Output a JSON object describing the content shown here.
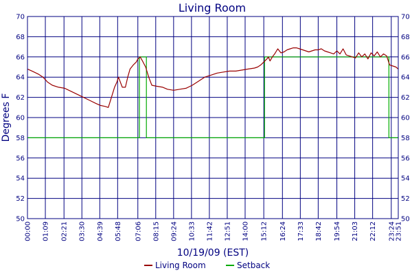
{
  "chart_data": {
    "type": "line",
    "title": "Living Room",
    "xlabel": "10/19/09 (EST)",
    "ylabel": "Degrees F",
    "ylim": [
      50,
      70
    ],
    "yticks": [
      50,
      52,
      54,
      56,
      58,
      60,
      62,
      64,
      66,
      68,
      70
    ],
    "x_unit": "hours",
    "xlim": [
      0,
      23.85
    ],
    "xtick_labels": [
      "00:00",
      "01:09",
      "02:21",
      "03:30",
      "04:39",
      "05:48",
      "07:06",
      "08:15",
      "09:24",
      "10:33",
      "11:42",
      "12:51",
      "14:00",
      "15:12",
      "16:24",
      "17:33",
      "18:42",
      "19:54",
      "21:03",
      "22:12",
      "23:24",
      "23:51"
    ],
    "xtick_hours": [
      0,
      1.15,
      2.35,
      3.5,
      4.65,
      5.8,
      7.1,
      8.25,
      9.4,
      10.55,
      11.7,
      12.85,
      14.0,
      15.2,
      16.4,
      17.55,
      18.7,
      19.9,
      21.05,
      22.2,
      23.4,
      23.85
    ],
    "grid": true,
    "legend_position": "bottom-center",
    "series": [
      {
        "name": "Living Room",
        "color": "#990000",
        "x": [
          0.0,
          0.3,
          0.7,
          1.0,
          1.3,
          1.6,
          2.0,
          2.4,
          2.8,
          3.2,
          3.6,
          4.0,
          4.4,
          4.7,
          5.0,
          5.2,
          5.4,
          5.6,
          5.75,
          5.85,
          6.1,
          6.3,
          6.45,
          6.6,
          6.8,
          7.0,
          7.1,
          7.25,
          7.4,
          7.6,
          7.8,
          8.0,
          8.3,
          8.7,
          9.0,
          9.4,
          9.8,
          10.2,
          10.6,
          11.0,
          11.4,
          11.8,
          12.2,
          12.6,
          13.0,
          13.4,
          13.8,
          14.2,
          14.6,
          14.8,
          15.0,
          15.2,
          15.4,
          15.5,
          15.6,
          15.75,
          15.9,
          16.1,
          16.3,
          16.5,
          16.7,
          16.9,
          17.1,
          17.3,
          17.5,
          17.7,
          17.9,
          18.1,
          18.3,
          18.5,
          18.7,
          18.9,
          19.1,
          19.3,
          19.5,
          19.7,
          19.9,
          20.1,
          20.3,
          20.5,
          20.7,
          20.9,
          21.1,
          21.3,
          21.5,
          21.7,
          21.9,
          22.1,
          22.3,
          22.5,
          22.7,
          22.9,
          23.1,
          23.3,
          23.5,
          23.7,
          23.85
        ],
        "y": [
          64.8,
          64.6,
          64.3,
          64.0,
          63.5,
          63.2,
          63.0,
          62.9,
          62.6,
          62.3,
          62.0,
          61.7,
          61.4,
          61.2,
          61.1,
          61.0,
          62.0,
          63.0,
          63.5,
          64.0,
          63.0,
          63.0,
          64.0,
          64.8,
          65.2,
          65.5,
          65.8,
          66.0,
          65.6,
          65.0,
          64.0,
          63.2,
          63.1,
          63.0,
          62.8,
          62.7,
          62.8,
          62.9,
          63.2,
          63.6,
          64.0,
          64.2,
          64.4,
          64.5,
          64.6,
          64.6,
          64.7,
          64.8,
          64.9,
          65.0,
          65.2,
          65.5,
          65.8,
          66.0,
          65.6,
          66.0,
          66.3,
          66.8,
          66.4,
          66.5,
          66.7,
          66.8,
          66.9,
          66.9,
          66.8,
          66.7,
          66.6,
          66.5,
          66.6,
          66.7,
          66.7,
          66.8,
          66.6,
          66.5,
          66.4,
          66.3,
          66.6,
          66.3,
          66.8,
          66.2,
          66.1,
          66.0,
          65.9,
          66.4,
          66.0,
          66.3,
          65.8,
          66.4,
          66.1,
          66.5,
          66.0,
          66.3,
          66.1,
          65.2,
          65.1,
          65.0,
          64.8
        ]
      },
      {
        "name": "Setback",
        "color": "#00aa00",
        "x": [
          0.0,
          7.2,
          7.2,
          7.65,
          7.65,
          15.25,
          15.25,
          23.25,
          23.25,
          23.85
        ],
        "y": [
          58,
          58,
          66,
          66,
          58,
          58,
          66,
          66,
          58,
          58
        ]
      }
    ]
  }
}
